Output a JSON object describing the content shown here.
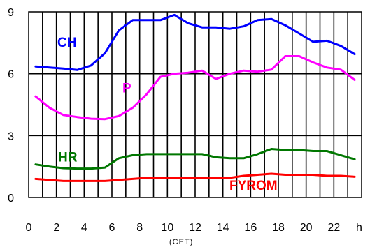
{
  "chart_data": {
    "type": "line",
    "title": "",
    "xlabel": "(CET)",
    "x_unit_label": "h",
    "ylabel": "",
    "xlim": [
      0,
      24
    ],
    "ylim": [
      0,
      9
    ],
    "x_tick_labels": [
      "0",
      "2",
      "4",
      "6",
      "8",
      "10",
      "12",
      "14",
      "16",
      "18",
      "20",
      "22"
    ],
    "y_tick_labels": [
      "0",
      "3",
      "6",
      "9"
    ],
    "x": [
      0.5,
      1.5,
      2.5,
      3.5,
      4.5,
      5.5,
      6.5,
      7.5,
      8.5,
      9.5,
      10.5,
      11.5,
      12.5,
      13.5,
      14.5,
      15.5,
      16.5,
      17.5,
      18.5,
      19.5,
      20.5,
      21.5,
      22.5,
      23.5
    ],
    "series": [
      {
        "name": "CH",
        "color": "#0000ff",
        "values": [
          6.35,
          6.3,
          6.25,
          6.18,
          6.4,
          7.0,
          8.1,
          8.6,
          8.6,
          8.6,
          8.85,
          8.45,
          8.25,
          8.25,
          8.18,
          8.3,
          8.6,
          8.65,
          8.35,
          7.95,
          7.55,
          7.6,
          7.35,
          6.95
        ]
      },
      {
        "name": "P",
        "color": "#ff00ff",
        "values": [
          4.9,
          4.35,
          4.0,
          3.9,
          3.82,
          3.8,
          3.95,
          4.35,
          5.0,
          5.85,
          6.0,
          6.05,
          6.15,
          5.75,
          6.0,
          6.15,
          6.1,
          6.2,
          6.85,
          6.85,
          6.55,
          6.3,
          6.2,
          5.7
        ]
      },
      {
        "name": "HR",
        "color": "#007700",
        "values": [
          1.6,
          1.5,
          1.42,
          1.4,
          1.4,
          1.45,
          1.9,
          2.05,
          2.1,
          2.1,
          2.1,
          2.1,
          2.1,
          1.95,
          1.9,
          1.9,
          2.1,
          2.35,
          2.3,
          2.3,
          2.25,
          2.25,
          2.05,
          1.85
        ]
      },
      {
        "name": "FYROM",
        "color": "#ff0000",
        "values": [
          0.9,
          0.85,
          0.8,
          0.8,
          0.8,
          0.8,
          0.85,
          0.9,
          0.95,
          0.95,
          0.95,
          0.95,
          0.95,
          0.95,
          0.95,
          1.05,
          1.1,
          1.15,
          1.1,
          1.1,
          1.1,
          1.05,
          1.05,
          1.0
        ]
      }
    ],
    "grid": true,
    "legend": "inline labels"
  }
}
